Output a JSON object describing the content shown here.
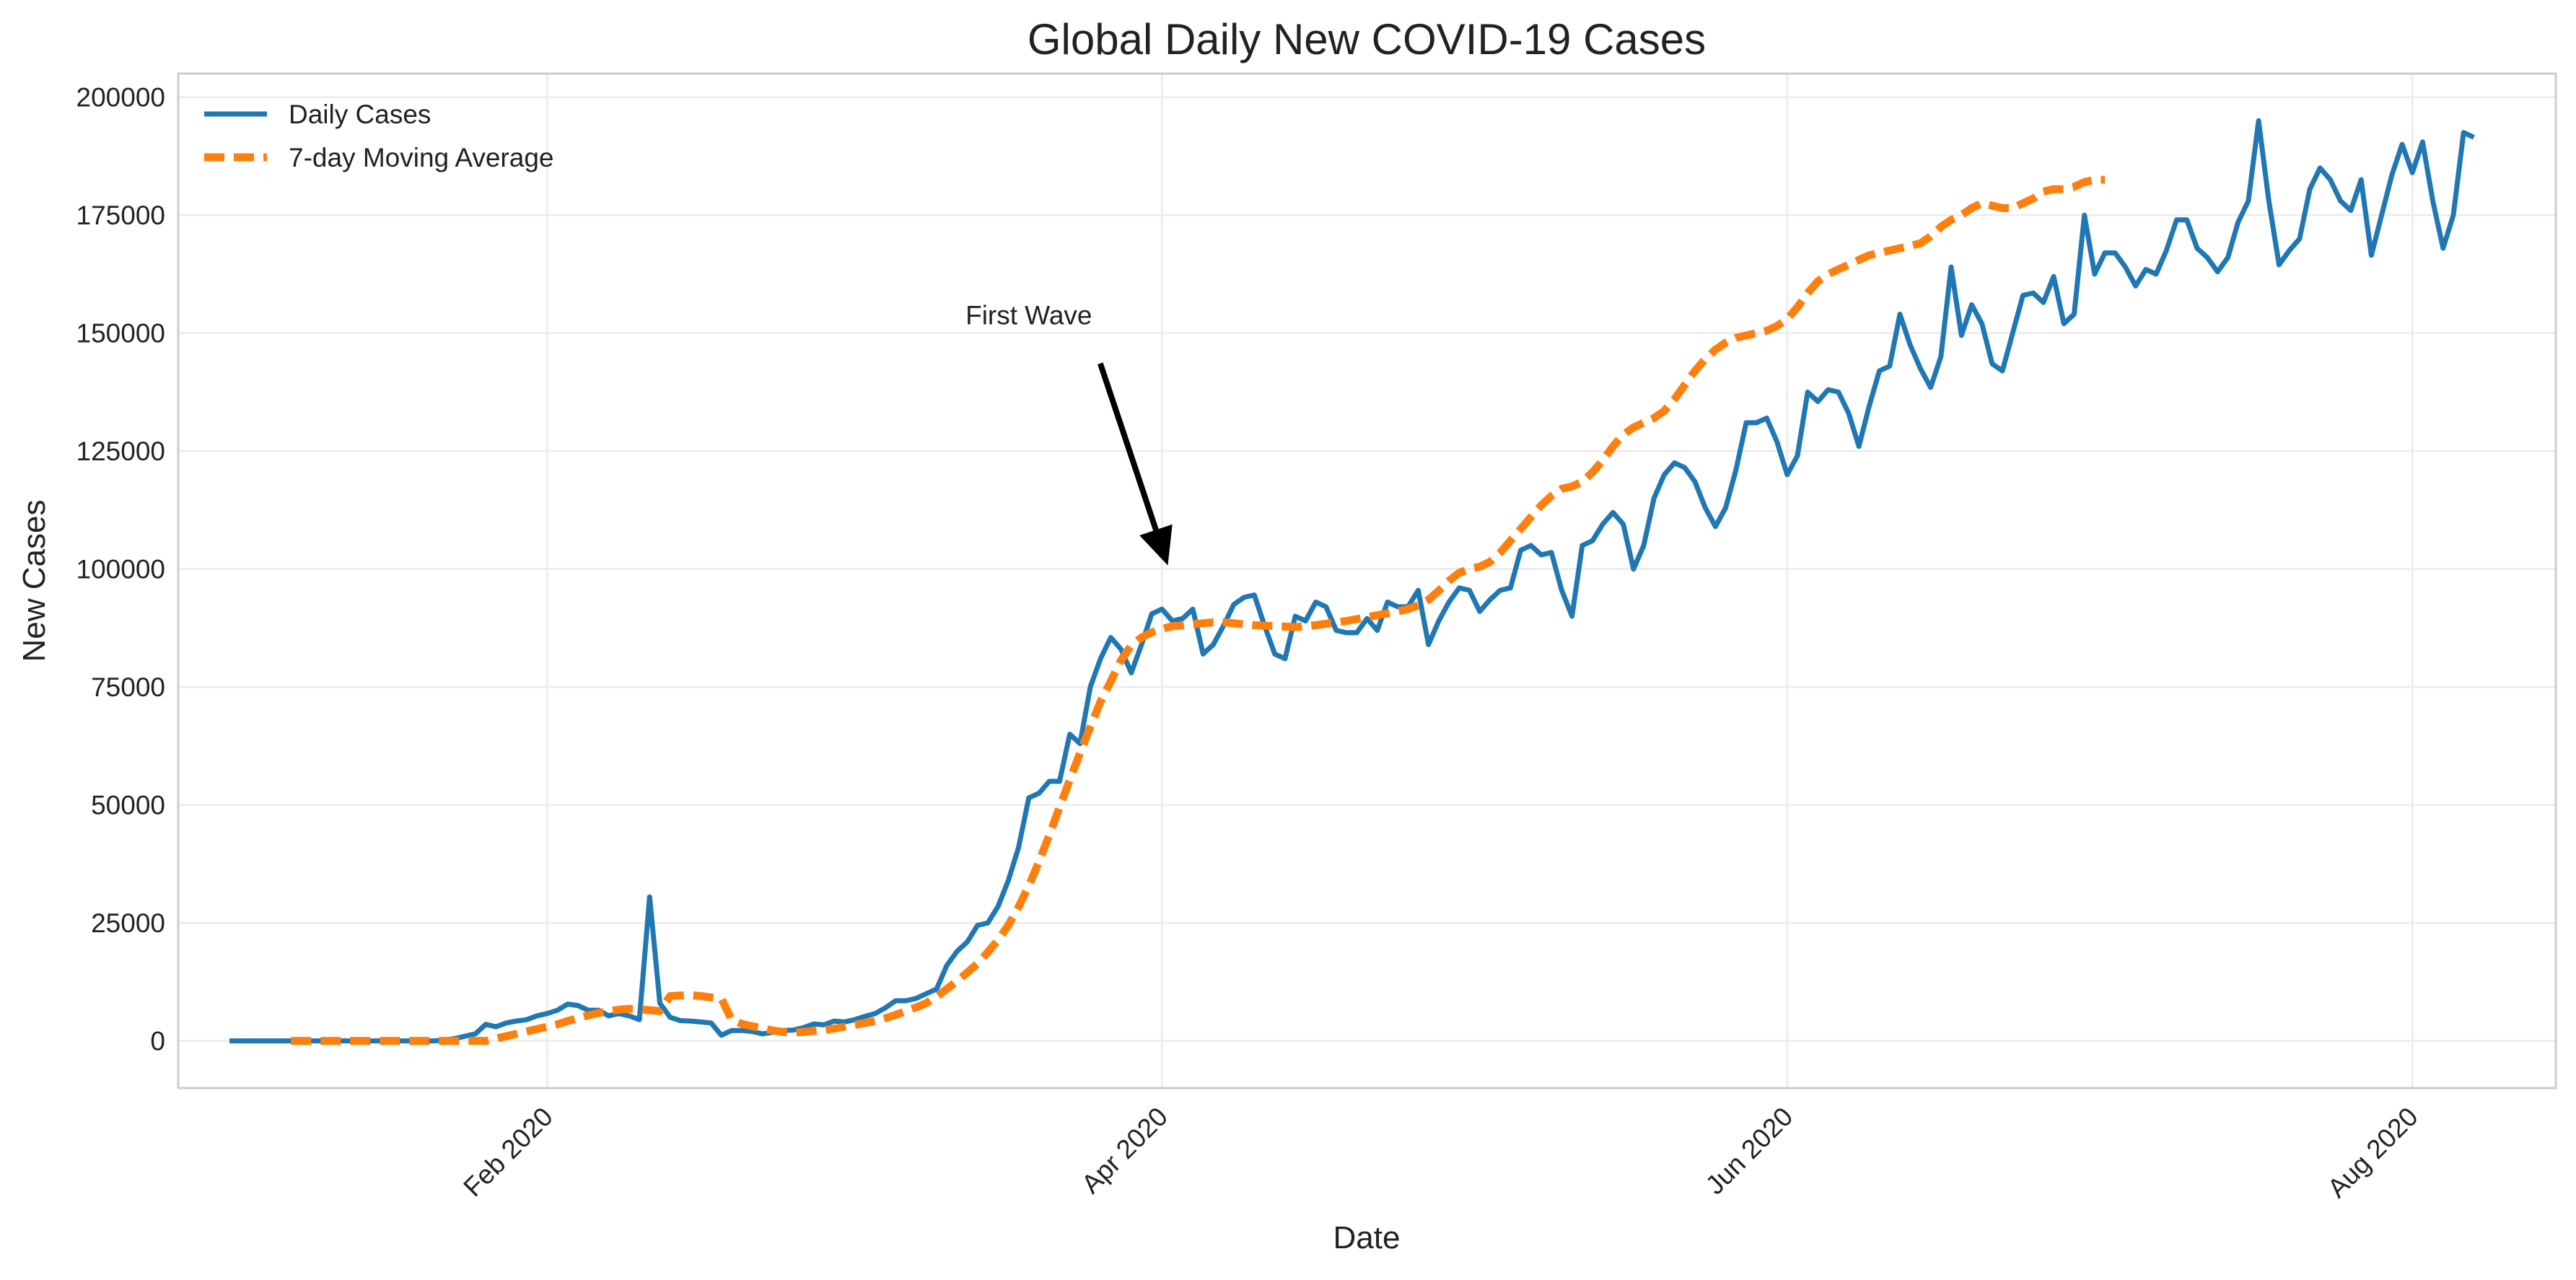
{
  "chart_data": {
    "type": "line",
    "title": "Global Daily New COVID-19 Cases",
    "xlabel": "Date",
    "ylabel": "New Cases",
    "x_start": "2020-01-01",
    "x_end": "2020-08-09",
    "xlim": [
      "2019-12-27",
      "2020-08-15"
    ],
    "ylim": [
      -10000,
      205000
    ],
    "yticks": [
      0,
      25000,
      50000,
      75000,
      100000,
      125000,
      150000,
      175000,
      200000
    ],
    "xticks": [
      {
        "date": "2020-02-01",
        "label": "Feb 2020"
      },
      {
        "date": "2020-04-01",
        "label": "Apr 2020"
      },
      {
        "date": "2020-06-01",
        "label": "Jun 2020"
      },
      {
        "date": "2020-08-01",
        "label": "Aug 2020"
      }
    ],
    "grid": true,
    "legend_position": "top-left",
    "annotation": {
      "text": "First Wave",
      "date": "2020-04-01",
      "value": 100000,
      "text_date": "2020-03-19",
      "text_value": 150000
    },
    "series": [
      {
        "name": "Daily Cases",
        "color": "#1f77b4",
        "style": "solid",
        "values": [
          0,
          0,
          0,
          0,
          0,
          0,
          0,
          0,
          0,
          0,
          0,
          0,
          0,
          0,
          0,
          0,
          0,
          0,
          0,
          0,
          0,
          200,
          500,
          1000,
          1500,
          3500,
          3000,
          3800,
          4200,
          4500,
          5300,
          5800,
          6500,
          7800,
          7500,
          6500,
          6500,
          5300,
          5800,
          5300,
          4500,
          30500,
          8000,
          5000,
          4300,
          4200,
          4000,
          3800,
          1200,
          2200,
          2200,
          2000,
          1500,
          1800,
          2200,
          2300,
          2800,
          3600,
          3400,
          4200,
          4000,
          4500,
          5200,
          5800,
          7000,
          8500,
          8500,
          9000,
          10000,
          11000,
          16000,
          19000,
          21000,
          24500,
          25000,
          28500,
          34000,
          41000,
          51500,
          52500,
          55000,
          55000,
          65000,
          63000,
          75000,
          81000,
          85500,
          83000,
          78000,
          84000,
          90500,
          91500,
          89000,
          89500,
          91500,
          82000,
          84000,
          88000,
          92500,
          94000,
          94500,
          88000,
          82000,
          81000,
          90000,
          89000,
          93000,
          92000,
          87000,
          86500,
          86500,
          89500,
          87000,
          93000,
          92000,
          92000,
          95500,
          84000,
          89000,
          93000,
          96000,
          95500,
          91000,
          93500,
          95500,
          96000,
          104000,
          105000,
          103000,
          103500,
          95500,
          90000,
          105000,
          106000,
          109500,
          112000,
          109500,
          100000,
          105000,
          115000,
          120000,
          122500,
          121500,
          118500,
          113000,
          109000,
          113000,
          121000,
          131000,
          131000,
          132000,
          127000,
          120000,
          124000,
          137500,
          135500,
          138000,
          137500,
          133000,
          126000,
          134500,
          142000,
          143000,
          154000,
          147500,
          142500,
          138500,
          145000,
          164000,
          149500,
          156000,
          152000,
          143500,
          142000,
          150000,
          158000,
          158500,
          156500,
          162000,
          152000,
          154000,
          175000,
          162500,
          167000,
          167000,
          164000,
          160000,
          163500,
          162500,
          167500,
          174000,
          174000,
          168000,
          166000,
          163000,
          166000,
          173500,
          178000,
          195000,
          178000,
          164500,
          167500,
          170000,
          180500,
          185000,
          182500,
          178000,
          176000,
          182500,
          166500,
          175000,
          183500,
          190000,
          184000,
          190500,
          178000,
          168000,
          175000,
          192500,
          191500
        ]
      },
      {
        "name": "7-day Moving Average",
        "color": "#ff7f0e",
        "style": "dashed",
        "start_date": "2020-01-07",
        "values": [
          0,
          0,
          0,
          0,
          0,
          0,
          0,
          0,
          0,
          0,
          0,
          0,
          0,
          0,
          0,
          0,
          0,
          0,
          0,
          0,
          500,
          1000,
          1500,
          2000,
          2500,
          3000,
          3500,
          4200,
          4800,
          5400,
          5900,
          6300,
          6600,
          6800,
          6700,
          6500,
          6300,
          9500,
          9600,
          9700,
          9500,
          9200,
          9000,
          4500,
          3600,
          3100,
          2700,
          2200,
          1900,
          1800,
          1900,
          2100,
          2300,
          2600,
          3000,
          3400,
          3800,
          4200,
          4800,
          5500,
          6300,
          7100,
          8000,
          9400,
          11000,
          12700,
          14500,
          16400,
          18800,
          21400,
          24500,
          28400,
          32800,
          38000,
          43600,
          49500,
          55300,
          61000,
          66500,
          71900,
          76200,
          80700,
          83800,
          85500,
          86600,
          87300,
          87900,
          88000,
          88300,
          88500,
          88700,
          88700,
          88500,
          88300,
          88100,
          88000,
          87900,
          87800,
          87700,
          87900,
          88100,
          88400,
          88700,
          89000,
          89400,
          89800,
          90200,
          90600,
          91000,
          91500,
          92300,
          93500,
          95400,
          97500,
          99200,
          100000,
          100500,
          101500,
          103500,
          106000,
          108500,
          111000,
          113500,
          115500,
          117000,
          117500,
          118500,
          120500,
          123000,
          126000,
          128500,
          130000,
          131000,
          132000,
          133500,
          136000,
          139000,
          142000,
          144500,
          146500,
          148000,
          149000,
          149500,
          150000,
          150500,
          151500,
          153000,
          155500,
          158500,
          161000,
          162500,
          163500,
          164500,
          165500,
          166500,
          167000,
          167500,
          168000,
          168500,
          169000,
          170500,
          172500,
          174000,
          175000,
          176500,
          177500,
          177000,
          176500,
          176500,
          177500,
          178500,
          180000,
          180500,
          180500,
          181000,
          182000,
          182500,
          182500
        ]
      }
    ]
  }
}
